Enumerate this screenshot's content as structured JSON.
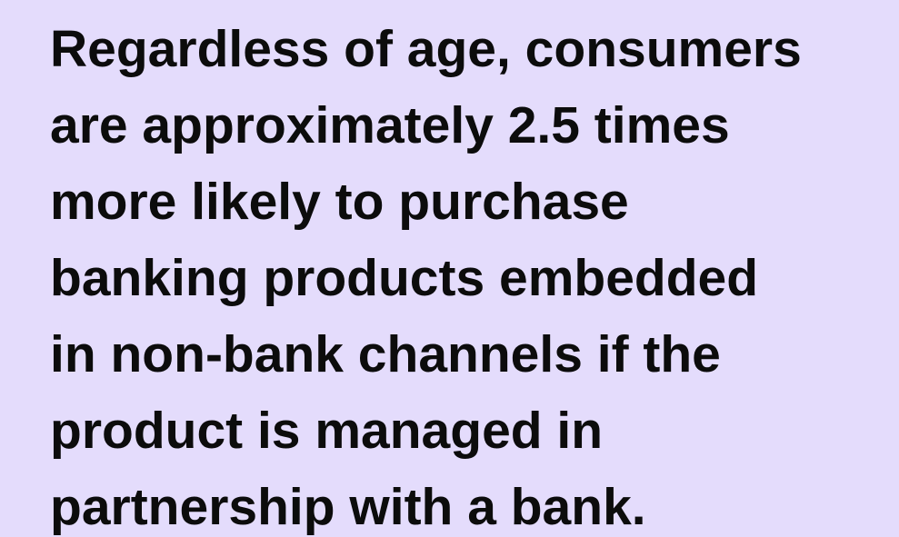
{
  "quote": {
    "lines": [
      "Regardless of age, consumers",
      "are approximately 2.5 times",
      "more likely to purchase",
      "banking products embedded",
      "in non-bank channels if the",
      "product is managed in",
      "partnership with a bank."
    ]
  }
}
